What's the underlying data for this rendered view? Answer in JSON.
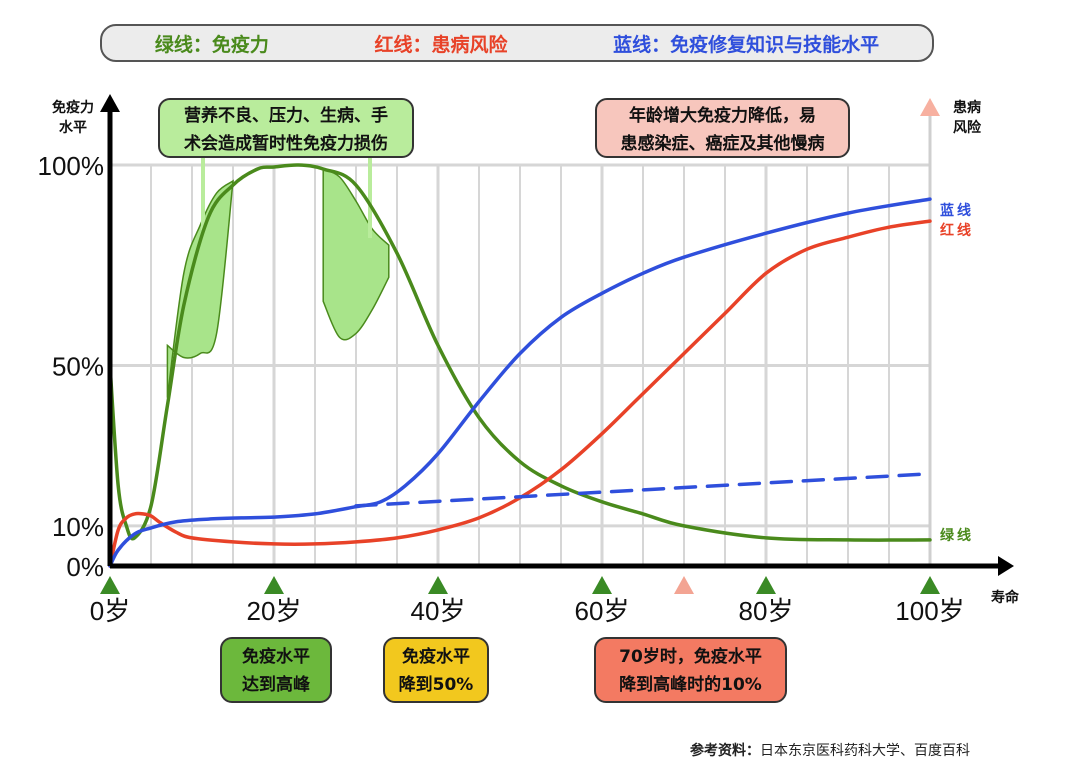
{
  "legend": {
    "green": "绿线：免疫力",
    "red": "红线：患病风险",
    "blue": "蓝线：免疫修复知识与技能水平"
  },
  "callouts": {
    "stress": [
      "营养不良、压力、生病、手",
      "术会造成暂时性免疫力损伤"
    ],
    "aging": [
      "年龄增大免疫力降低，易",
      "患感染症、癌症及其他慢病"
    ],
    "peak": [
      "免疫水平",
      "达到高峰"
    ],
    "half": [
      "免疫水平",
      "降到50%"
    ],
    "seventy": [
      "70岁时，免疫水平",
      "降到高峰时的10%"
    ]
  },
  "reference": {
    "label": "参考资料：",
    "text": "日本东京医科药科大学、百度百科"
  },
  "colors": {
    "green": "#4a8a1c",
    "red": "#e84228",
    "blue": "#2f4fdc",
    "fill": "#a8e48a"
  },
  "chart_data": {
    "type": "line",
    "x_axis_label": "寿命",
    "y_axis_left_label": [
      "免疫力",
      "水平"
    ],
    "y_axis_right_label": [
      "患病",
      "风险"
    ],
    "x_ticks": [
      {
        "value": 0,
        "label": "0岁"
      },
      {
        "value": 20,
        "label": "20岁"
      },
      {
        "value": 40,
        "label": "40岁"
      },
      {
        "value": 60,
        "label": "60岁"
      },
      {
        "value": 80,
        "label": "80岁"
      },
      {
        "value": 100,
        "label": "100岁"
      }
    ],
    "y_ticks": [
      {
        "value": 0,
        "label": "0%"
      },
      {
        "value": 10,
        "label": "10%"
      },
      {
        "value": 50,
        "label": "50%"
      },
      {
        "value": 100,
        "label": "100%"
      }
    ],
    "xlim": [
      0,
      100
    ],
    "ylim": [
      0,
      100
    ],
    "grid": true,
    "series": [
      {
        "name": "绿线",
        "color": "#4a8a1c",
        "x": [
          0,
          1,
          2,
          3,
          5,
          7,
          9,
          12,
          15,
          18,
          20,
          23,
          26,
          30,
          35,
          40,
          45,
          50,
          55,
          60,
          65,
          70,
          80,
          90,
          100
        ],
        "y": [
          50,
          20,
          10,
          7,
          15,
          40,
          65,
          87,
          95,
          99,
          99.5,
          100,
          99,
          95,
          78,
          55,
          37,
          26,
          20,
          16,
          13,
          10,
          7,
          6.5,
          6.5
        ]
      },
      {
        "name": "红线",
        "color": "#e84228",
        "x": [
          0,
          1,
          2,
          3,
          4,
          5,
          6,
          8,
          10,
          15,
          20,
          25,
          30,
          35,
          40,
          45,
          50,
          55,
          60,
          65,
          70,
          75,
          80,
          85,
          90,
          95,
          100
        ],
        "y": [
          0,
          9,
          12,
          13,
          13,
          12.5,
          11,
          8.5,
          7,
          6,
          5.5,
          5.5,
          6,
          7,
          9,
          12,
          17,
          24,
          33,
          43,
          53,
          63,
          73,
          79,
          82,
          84.5,
          86
        ]
      },
      {
        "name": "蓝线",
        "color": "#2f4fdc",
        "x": [
          0,
          1,
          3,
          5,
          8,
          12,
          16,
          20,
          25,
          30,
          33,
          36,
          40,
          45,
          50,
          55,
          60,
          65,
          70,
          80,
          90,
          100
        ],
        "y": [
          0,
          4,
          8,
          9.5,
          11,
          11.7,
          12,
          12.2,
          13,
          14.8,
          16,
          20,
          28,
          41,
          53,
          62,
          68,
          73,
          77,
          83,
          88,
          91.5
        ]
      },
      {
        "name": "",
        "color": "#2f4fdc",
        "dashed": true,
        "x": [
          30,
          100
        ],
        "y": [
          15,
          23
        ]
      }
    ],
    "series_labels": [
      {
        "text": "蓝线",
        "color": "#2f4fdc",
        "y": 89
      },
      {
        "text": "红线",
        "color": "#e84228",
        "y": 84
      },
      {
        "text": "绿线",
        "color": "#4a8a1c",
        "y": 8
      }
    ],
    "shaded_dips": [
      {
        "x": [
          7,
          9,
          11,
          13,
          15
        ],
        "y_top": [
          42,
          73,
          85,
          93,
          96
        ],
        "y_bottom": [
          55,
          52,
          53,
          58,
          96
        ]
      },
      {
        "x": [
          26,
          28,
          30,
          32,
          34
        ],
        "y_top": [
          99,
          97,
          91,
          84,
          80
        ],
        "y_bottom": [
          66,
          57,
          58,
          64,
          72
        ]
      }
    ],
    "markers": [
      {
        "x": 0,
        "color": "#3a8a25"
      },
      {
        "x": 20,
        "color": "#3a8a25"
      },
      {
        "x": 40,
        "color": "#3a8a25"
      },
      {
        "x": 60,
        "color": "#3a8a25"
      },
      {
        "x": 70,
        "color": "#f3a493"
      },
      {
        "x": 80,
        "color": "#3a8a25"
      },
      {
        "x": 100,
        "color": "#3a8a25"
      }
    ]
  }
}
